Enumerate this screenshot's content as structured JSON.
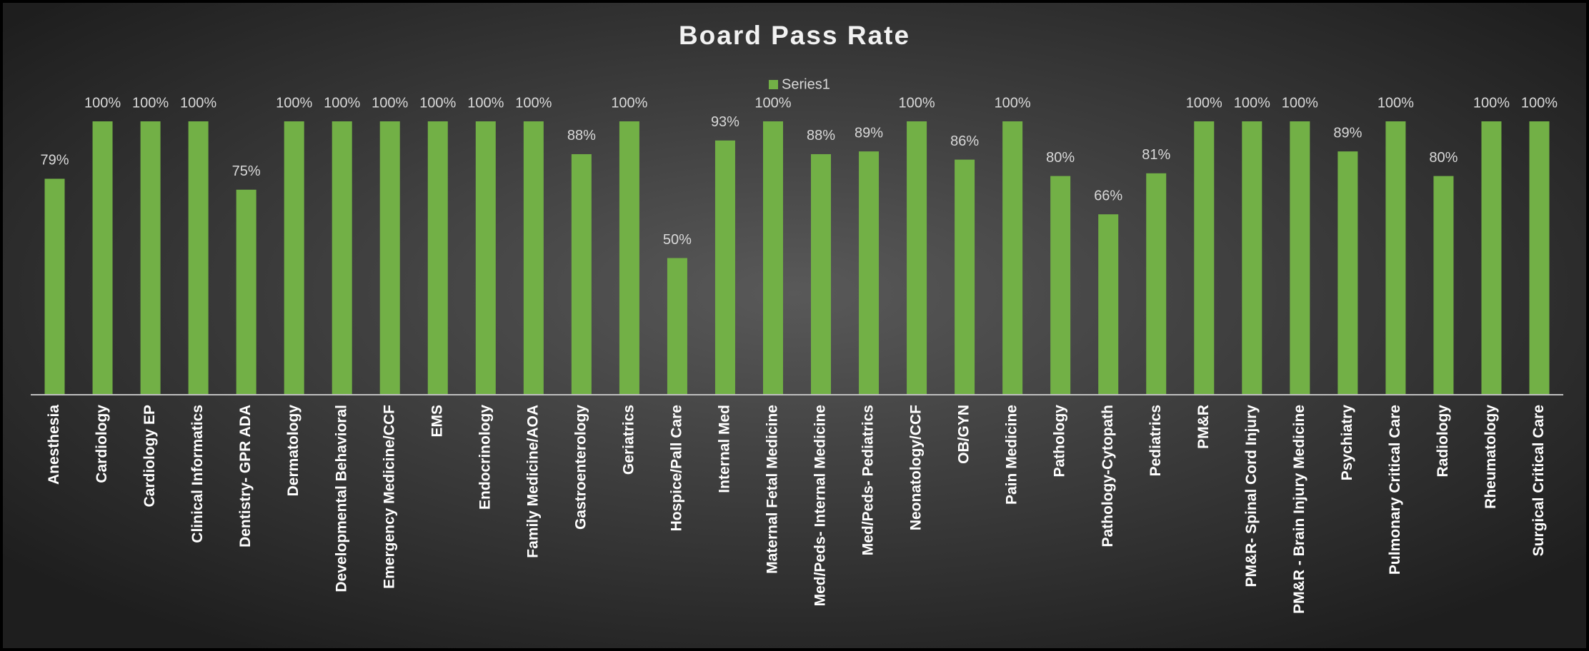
{
  "chart_data": {
    "type": "bar",
    "title": "Board Pass Rate",
    "categories": [
      "Anesthesia",
      "Cardiology",
      "Cardiology EP",
      "Clinical Informatics",
      "Dentistry- GPR ADA",
      "Dermatology",
      "Developmental Behavioral",
      "Emergency Medicine/CCF",
      "EMS",
      "Endocrinology",
      "Family Medicine/AOA",
      "Gastroenterology",
      "Geriatrics",
      "Hospice/Pall Care",
      "Internal Med",
      "Maternal Fetal Medicine",
      "Med/Peds- Internal Medicine",
      "Med/Peds- Pediatrics",
      "Neonatology/CCF",
      "OB/GYN",
      "Pain Medicine",
      "Pathology",
      "Pathology-Cytopath",
      "Pediatrics",
      "PM&R",
      "PM&R- Spinal Cord Injury",
      "PM&R - Brain Injury Medicine",
      "Psychiatry",
      "Pulmonary Critical Care",
      "Radiology",
      "Rheumatology",
      "Surgical Critical Care"
    ],
    "series": [
      {
        "name": "Series1",
        "color": "#72b046",
        "values": [
          79,
          100,
          100,
          100,
          75,
          100,
          100,
          100,
          100,
          100,
          100,
          88,
          100,
          50,
          93,
          100,
          88,
          89,
          100,
          86,
          100,
          80,
          66,
          81,
          100,
          100,
          100,
          89,
          100,
          80,
          100,
          100
        ],
        "value_labels": [
          "79%",
          "100%",
          "100%",
          "100%",
          "75%",
          "100%",
          "100%",
          "100%",
          "100%",
          "100%",
          "100%",
          "88%",
          "100%",
          "50%",
          "93%",
          "100%",
          "88%",
          "89%",
          "100%",
          "86%",
          "100%",
          "80%",
          "66%",
          "81%",
          "100%",
          "100%",
          "100%",
          "89%",
          "100%",
          "80%",
          "100%",
          "100%"
        ]
      }
    ],
    "legend": "top"
  }
}
